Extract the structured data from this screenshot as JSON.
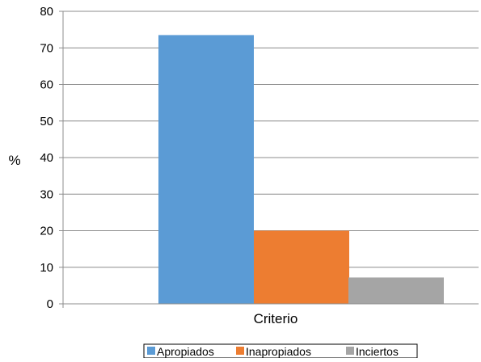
{
  "chart_data": {
    "type": "bar",
    "title": "",
    "xlabel": "",
    "ylabel": "%",
    "categories": [
      "Criterio"
    ],
    "series": [
      {
        "name": "Apropiados",
        "values": [
          73.5
        ],
        "color": "#5b9bd5"
      },
      {
        "name": "Inapropiados",
        "values": [
          20
        ],
        "color": "#ed7d31"
      },
      {
        "name": "Inciertos",
        "values": [
          7.2
        ],
        "color": "#a5a5a5"
      }
    ],
    "ylim": [
      0,
      80
    ],
    "yticks": [
      0,
      10,
      20,
      30,
      40,
      50,
      60,
      70,
      80
    ],
    "grid": true,
    "legend": "bottom"
  }
}
